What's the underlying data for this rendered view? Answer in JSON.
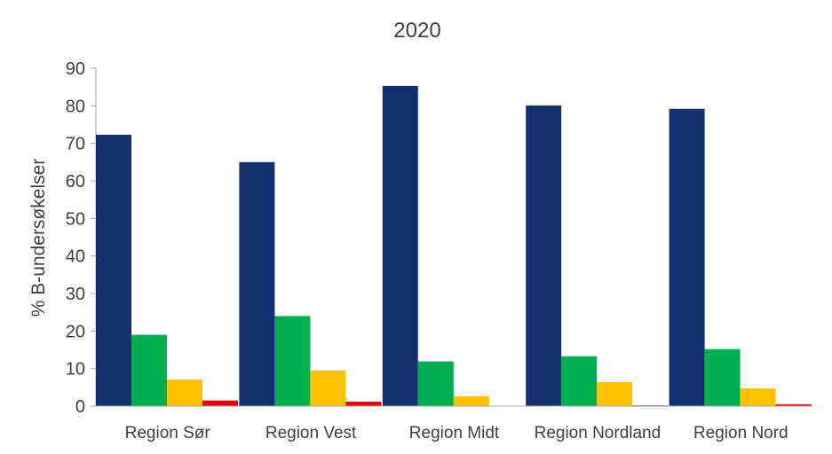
{
  "chart_data": {
    "type": "bar",
    "title": "2020",
    "xlabel": "",
    "ylabel": "% B-undersøkelser",
    "ylim": [
      0,
      90
    ],
    "yticks": [
      0,
      10,
      20,
      30,
      40,
      50,
      60,
      70,
      80,
      90
    ],
    "grid": false,
    "legend": "none",
    "categories": [
      "Region Sør",
      "Region Vest",
      "Region Midt",
      "Region Nordland",
      "Region Nord"
    ],
    "series": [
      {
        "color": "#14306e",
        "values": [
          72.3,
          65.0,
          85.3,
          80.1,
          79.2
        ]
      },
      {
        "color": "#00b050",
        "values": [
          19.0,
          24.0,
          11.9,
          13.3,
          15.2
        ]
      },
      {
        "color": "#ffc000",
        "values": [
          7.1,
          9.5,
          2.6,
          6.4,
          4.7
        ]
      },
      {
        "color": "#e3000f",
        "values": [
          1.5,
          1.2,
          0.1,
          0.2,
          0.5
        ]
      }
    ]
  }
}
